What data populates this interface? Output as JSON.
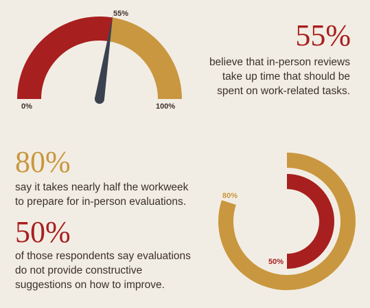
{
  "colors": {
    "background": "#f2ede4",
    "red": "#a81f1f",
    "gold": "#c9973f",
    "needle": "#3a4250",
    "text": "#3b2f2a"
  },
  "gauge": {
    "value_label": "55%",
    "min_label": "0%",
    "max_label": "100%"
  },
  "stat1": {
    "value": "55%",
    "lines": [
      "believe that in-person reviews",
      "take up time that should be",
      "spent on work-related tasks."
    ]
  },
  "stat2": {
    "value": "80%",
    "lines": [
      "say it takes nearly half the workweek",
      "to prepare for in-person evaluations."
    ]
  },
  "stat3": {
    "value": "50%",
    "lines": [
      "of those respondents say evaluations",
      "do not provide constructive",
      "suggestions on how to improve."
    ]
  },
  "chart_data": [
    {
      "type": "gauge",
      "value": 55,
      "range": [
        0,
        100
      ],
      "labels": [
        "0%",
        "55%",
        "100%"
      ]
    },
    {
      "type": "radial-bar",
      "series": [
        {
          "value": 80,
          "label": "80%",
          "color": "#c9973f"
        },
        {
          "value": 50,
          "label": "50%",
          "color": "#a81f1f"
        }
      ],
      "range": [
        0,
        100
      ]
    }
  ]
}
